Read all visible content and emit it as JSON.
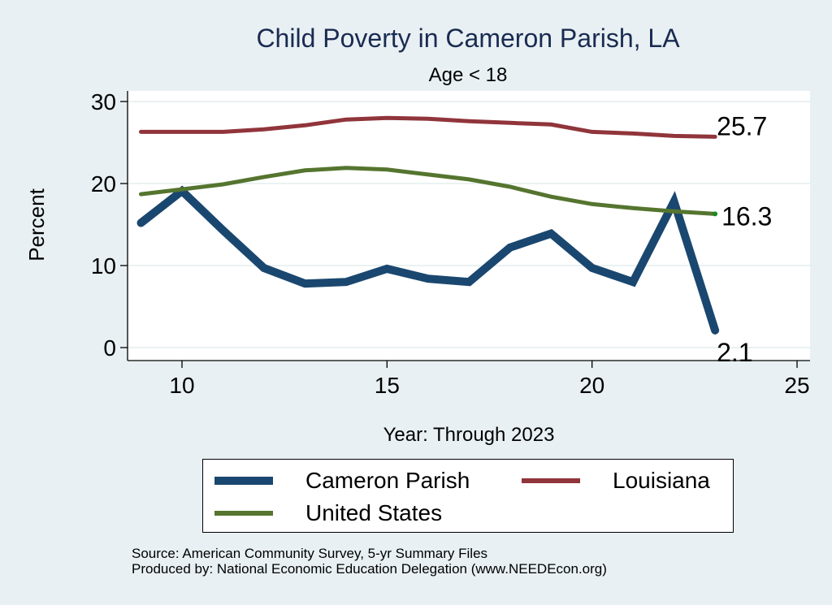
{
  "chart_data": {
    "type": "line",
    "title": "Child Poverty in Cameron Parish, LA",
    "subtitle": "Age < 18",
    "xlabel": "Year: Through 2023",
    "ylabel": "Percent",
    "xlim": [
      8.0,
      25.3
    ],
    "ylim": [
      -1.6,
      31.5
    ],
    "x_ticks": [
      10,
      15,
      20,
      25
    ],
    "y_ticks": [
      0,
      10,
      20,
      30
    ],
    "grid": true,
    "legend_position": "bottom",
    "x": [
      9,
      10,
      11,
      12,
      13,
      14,
      15,
      16,
      17,
      18,
      19,
      20,
      21,
      22,
      23
    ],
    "series": [
      {
        "name": "Cameron Parish",
        "color": "#1a476f",
        "values": [
          15.2,
          19.1,
          14.3,
          9.7,
          7.8,
          8.0,
          9.6,
          8.4,
          8.0,
          12.2,
          13.9,
          9.7,
          8.0,
          17.8,
          2.1
        ],
        "end_label": "2.1"
      },
      {
        "name": "Louisiana",
        "color": "#90353b",
        "values": [
          26.3,
          26.3,
          26.3,
          26.6,
          27.1,
          27.8,
          28.0,
          27.9,
          27.6,
          27.4,
          27.2,
          26.3,
          26.1,
          25.8,
          25.7
        ],
        "end_label": "25.7"
      },
      {
        "name": "United States",
        "color": "#55752f",
        "values": [
          18.7,
          19.3,
          19.9,
          20.8,
          21.6,
          21.9,
          21.7,
          21.1,
          20.5,
          19.6,
          18.4,
          17.5,
          17.0,
          16.6,
          16.3
        ],
        "end_label": "16.3"
      }
    ]
  },
  "legend": {
    "items": [
      {
        "label": "Cameron Parish",
        "color": "#1a476f"
      },
      {
        "label": "Louisiana",
        "color": "#90353b"
      },
      {
        "label": "United States",
        "color": "#55752f"
      }
    ]
  },
  "footer": {
    "source": "Source: American Community Survey, 5-yr Summary Files",
    "produced_by": "Produced by: National Economic Education Delegation (www.NEEDEcon.org)"
  },
  "colors": {
    "background": "#e8f0f3",
    "plot_background": "#ffffff",
    "title": "#1a2b52",
    "grid": "#eaf2f3"
  }
}
